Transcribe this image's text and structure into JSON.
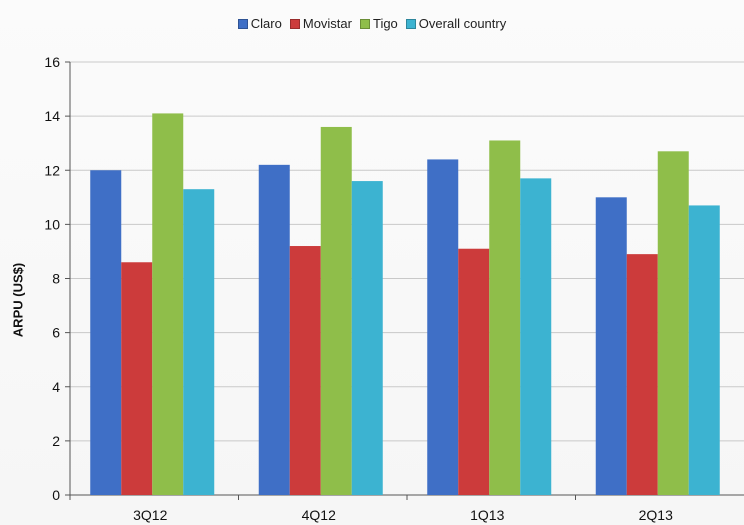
{
  "chart_data": {
    "type": "bar",
    "title": "",
    "xlabel": "",
    "ylabel": "ARPU (US$)",
    "ylim": [
      0,
      16
    ],
    "yticks": [
      0,
      2,
      4,
      6,
      8,
      10,
      12,
      14,
      16
    ],
    "grid": true,
    "legend_position": "top",
    "categories": [
      "3Q12",
      "4Q12",
      "1Q13",
      "2Q13"
    ],
    "series": [
      {
        "name": "Claro",
        "color": "#3f6fc6",
        "values": [
          12.0,
          12.2,
          12.4,
          11.0
        ]
      },
      {
        "name": "Movistar",
        "color": "#cc3b3b",
        "values": [
          8.6,
          9.2,
          9.1,
          8.9
        ]
      },
      {
        "name": "Tigo",
        "color": "#8fbe4a",
        "values": [
          14.1,
          13.6,
          13.1,
          12.7
        ]
      },
      {
        "name": "Overall country",
        "color": "#3cb3d1",
        "values": [
          11.3,
          11.6,
          11.7,
          10.7
        ]
      }
    ]
  }
}
